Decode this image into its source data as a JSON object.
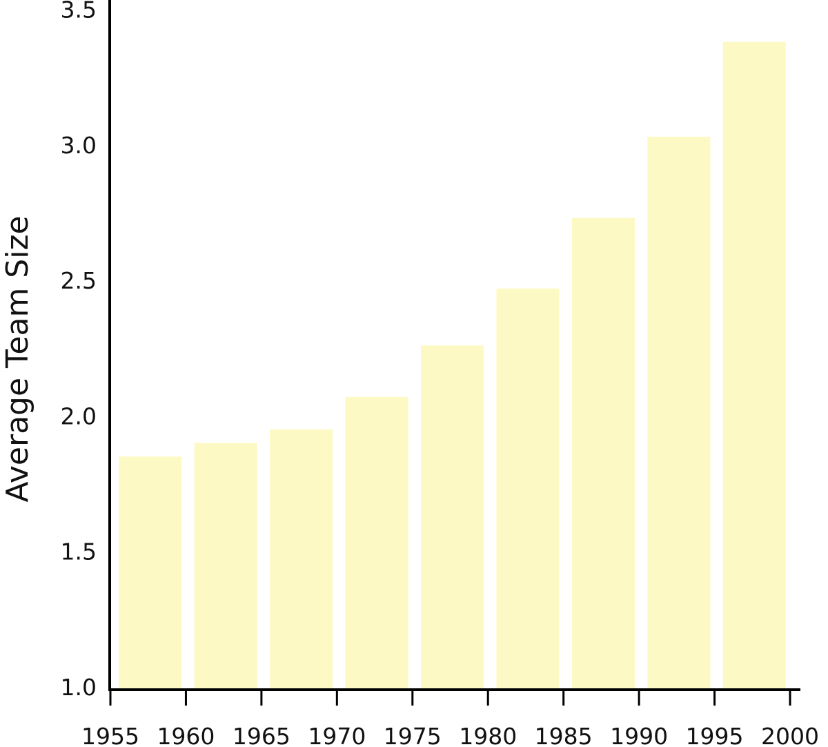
{
  "chart_data": {
    "type": "bar",
    "title": "",
    "xlabel": "",
    "ylabel": "Average Team Size",
    "bins": [
      {
        "start": 1955,
        "end": 1960,
        "value": 1.85
      },
      {
        "start": 1960,
        "end": 1965,
        "value": 1.9
      },
      {
        "start": 1965,
        "end": 1970,
        "value": 1.95
      },
      {
        "start": 1970,
        "end": 1975,
        "value": 2.07
      },
      {
        "start": 1975,
        "end": 1980,
        "value": 2.26
      },
      {
        "start": 1980,
        "end": 1985,
        "value": 2.47
      },
      {
        "start": 1985,
        "end": 1990,
        "value": 2.73
      },
      {
        "start": 1990,
        "end": 1995,
        "value": 3.03
      },
      {
        "start": 1995,
        "end": 2000,
        "value": 3.38
      }
    ],
    "xlim": [
      1955,
      2000
    ],
    "ylim": [
      1.0,
      3.5
    ],
    "xticks": [
      "1955",
      "1960",
      "1965",
      "1970",
      "1975",
      "1980",
      "1985",
      "1990",
      "1995",
      "2000"
    ],
    "yticks": [
      "1.0",
      "1.5",
      "2.0",
      "2.5",
      "3.0",
      "3.5"
    ],
    "grid": false,
    "bar_color": "#FDF9C4",
    "axis_color": "#000000"
  }
}
